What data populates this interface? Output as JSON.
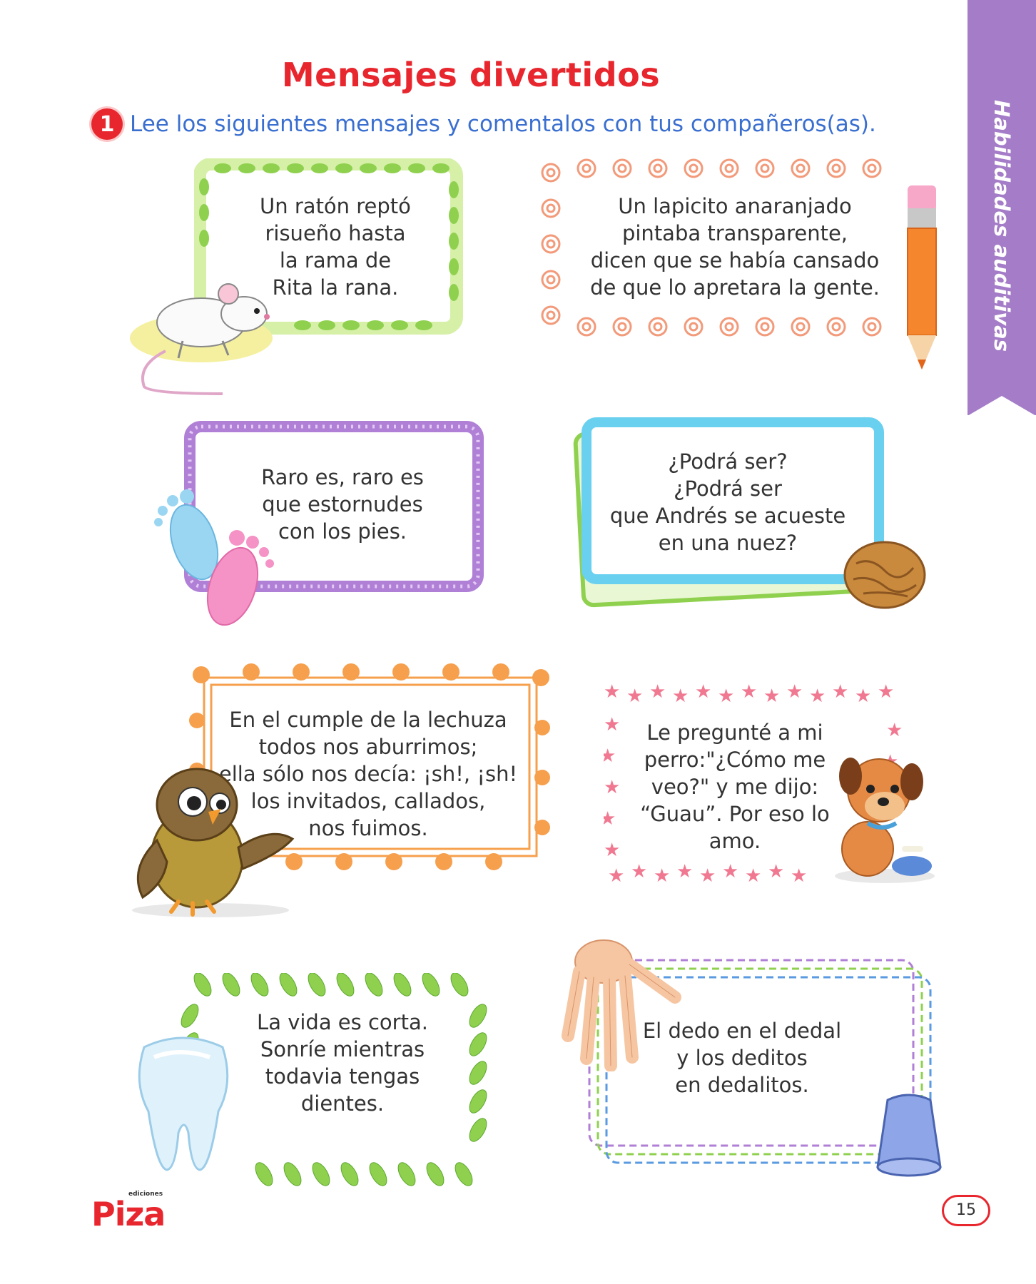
{
  "page": {
    "title": "Mensajes divertidos",
    "instruction_number": "1",
    "instruction": "Lee los siguientes mensajes y comentalos con tus compañeros(as).",
    "side_tab": "Habilidades auditivas",
    "page_number": "15"
  },
  "publisher": {
    "brand": "Piza",
    "tag": "ediciones"
  },
  "messages": [
    {
      "text": "Un ratón reptó\nrisueño hasta\nla rama de\nRita la rana.",
      "illustration": "mouse-icon"
    },
    {
      "text": "Un lapicito anaranjado\npintaba transparente,\ndicen que se había cansado\nde que lo apretara la gente.",
      "illustration": "pencil-icon"
    },
    {
      "text": "Raro es, raro es\nque estornudes\ncon los pies.",
      "illustration": "footprints-icon"
    },
    {
      "text": "¿Podrá ser?\n¿Podrá ser\nque Andrés se acueste\nen una nuez?",
      "illustration": "walnut-icon"
    },
    {
      "text": "En el cumple de la lechuza\ntodos nos aburrimos;\nella sólo nos decía: ¡sh!, ¡sh!\nlos invitados, callados,\nnos fuimos.",
      "illustration": "owl-icon"
    },
    {
      "text": "Le pregunté a mi\nperro:\"¿Cómo me\nveo?\" y me dijo:\n“Guau”. Por eso lo\namo.",
      "illustration": "puppy-icon"
    },
    {
      "text": "La vida es corta.\nSonríe mientras\ntodavia tengas\ndientes.",
      "illustration": "tooth-icon"
    },
    {
      "text": "El dedo en el dedal\ny los deditos\nen dedalitos.",
      "illustration": "hand-thimble-icon"
    }
  ],
  "colors": {
    "title": "#e8262e",
    "instruction": "#3a6fd0",
    "tab": "#a47cc7",
    "green_frame": "#8fd14f",
    "orange_frame": "#f6a04d",
    "purple_frame": "#b07fd6",
    "blue_frame": "#6ad0f0",
    "pink_frame": "#f07890"
  }
}
